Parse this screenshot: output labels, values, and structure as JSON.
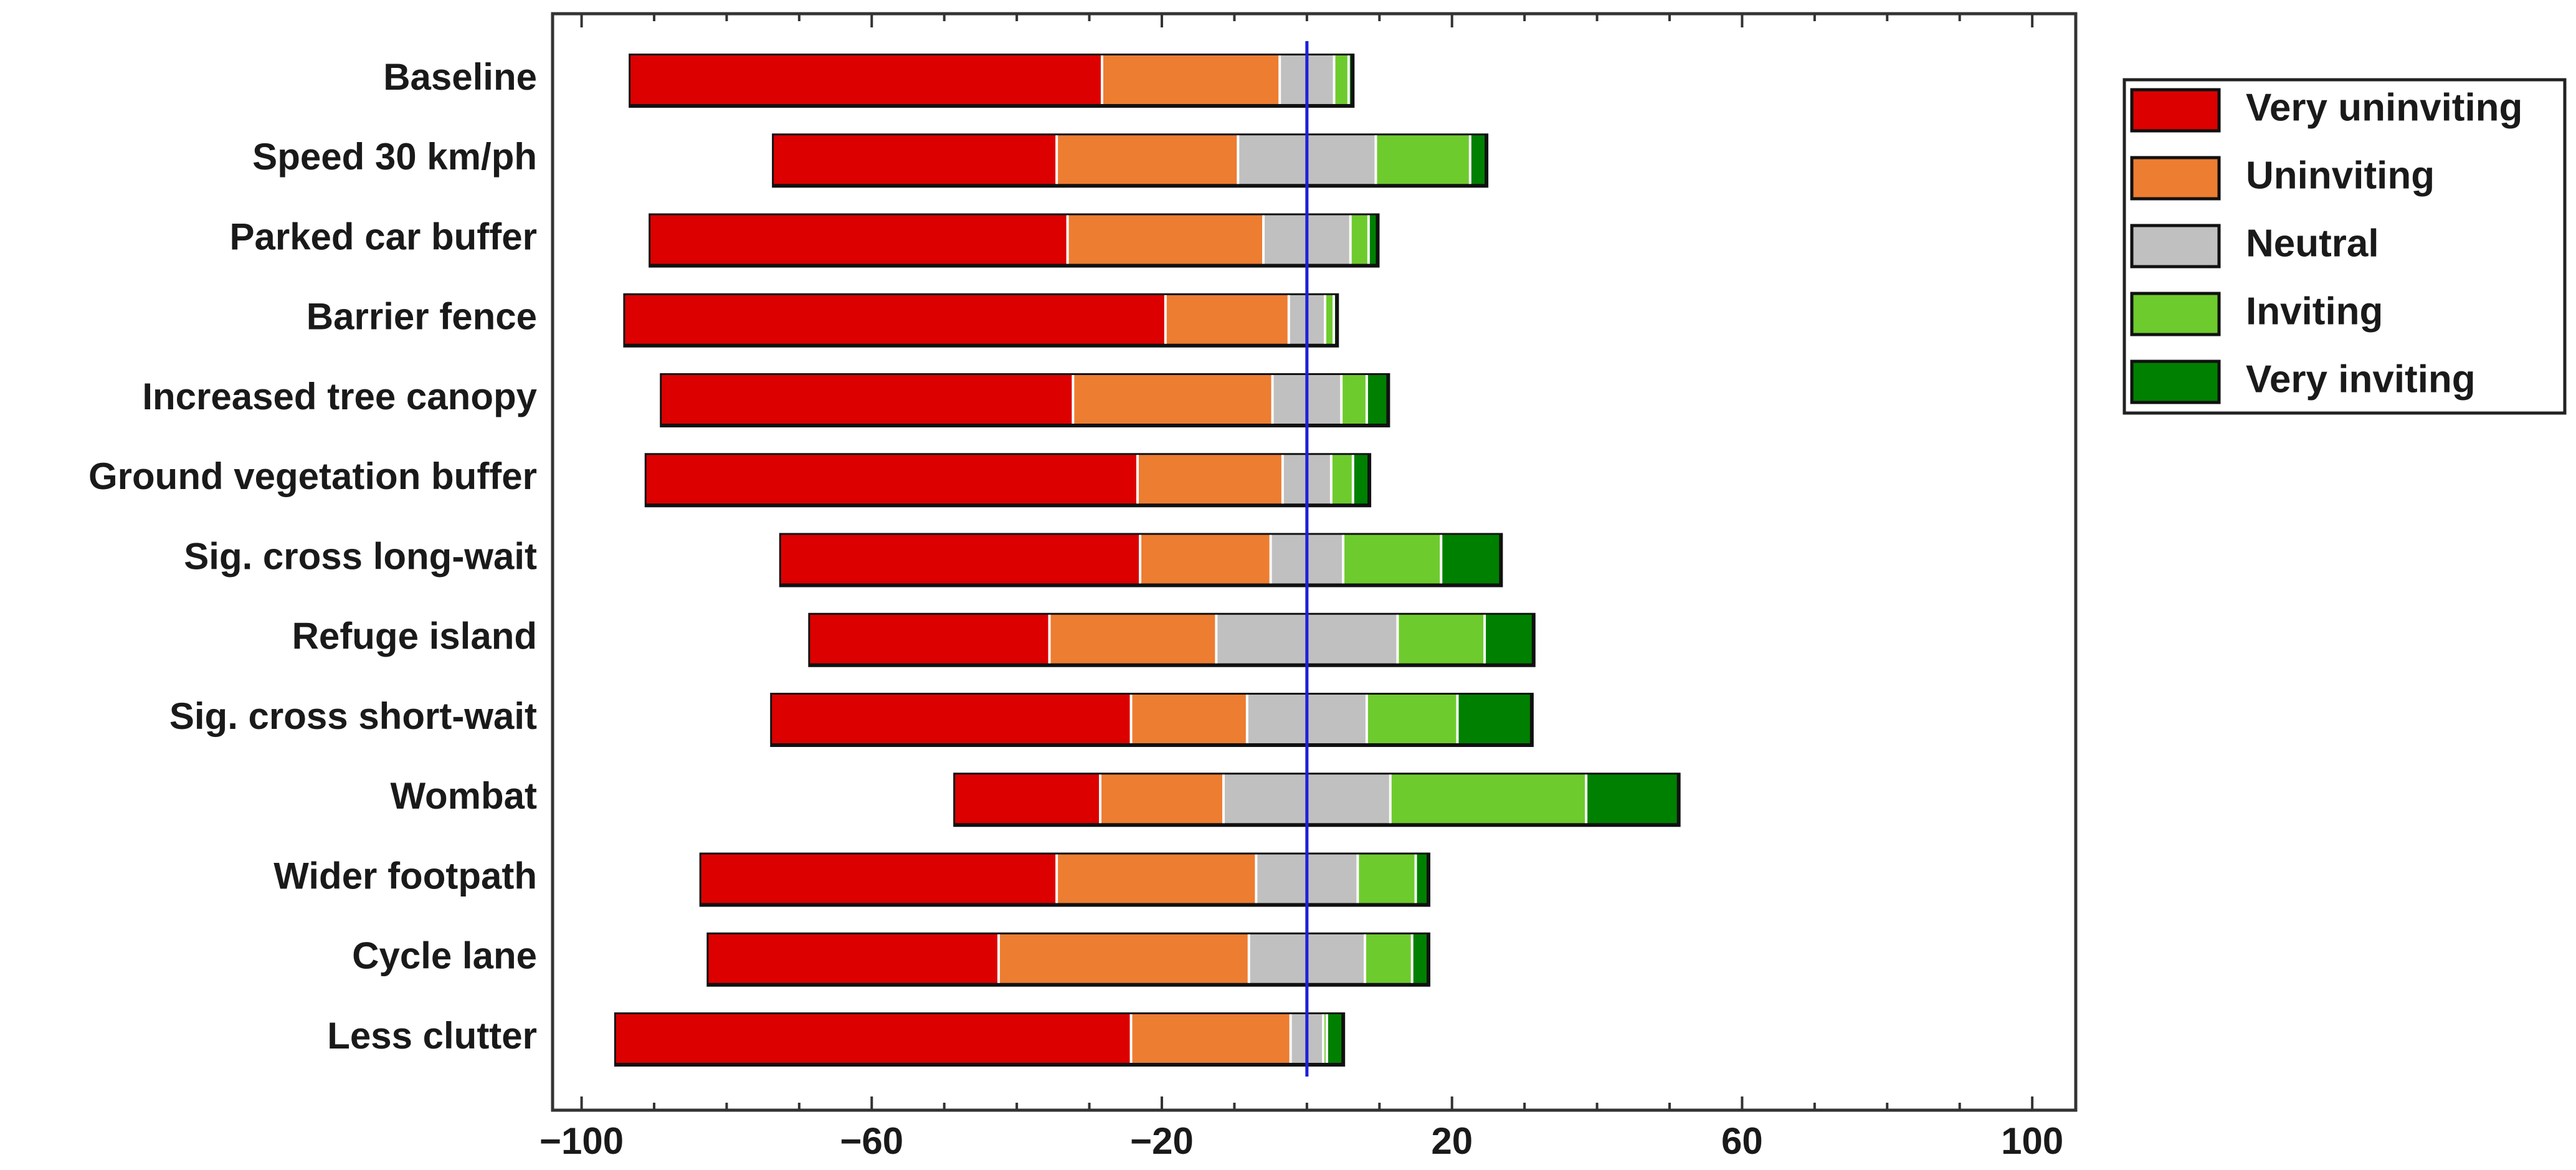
{
  "chart_data": {
    "type": "bar",
    "orientation": "horizontal",
    "stacked": "diverging",
    "title": "",
    "xlabel": "",
    "ylabel": "",
    "xlim": [
      -104,
      106
    ],
    "xticks": [
      -100,
      -60,
      -20,
      20,
      60,
      100
    ],
    "xtick_labels": [
      "−100",
      "−60",
      "−20",
      "20",
      "60",
      "100"
    ],
    "reference_line": {
      "x": 0,
      "color": "#1f1fd6"
    },
    "legend_position": "top-right",
    "categories": [
      "Baseline",
      "Speed 30 km/ph",
      "Parked car buffer",
      "Barrier fence",
      "Increased tree canopy",
      "Ground vegetation buffer",
      "Sig. cross long-wait",
      "Refuge island",
      "Sig. cross short-wait",
      "Wombat",
      "Wider footpath",
      "Cycle lane",
      "Less clutter"
    ],
    "series": [
      {
        "name": "Very uninviting",
        "color": "#dc0000",
        "values": [
          65.0,
          39.0,
          57.5,
          74.5,
          56.7,
          67.7,
          49.5,
          33.0,
          49.5,
          20.0,
          49.0,
          40.0,
          71.0
        ]
      },
      {
        "name": "Uninviting",
        "color": "#ed7d31",
        "values": [
          24.5,
          25.0,
          27.0,
          17.0,
          27.5,
          20.0,
          18.0,
          23.0,
          16.0,
          17.0,
          27.5,
          34.5,
          22.0
        ]
      },
      {
        "name": "Neutral",
        "color": "#c0c0c0",
        "values": [
          7.5,
          19.0,
          12.0,
          5.0,
          9.5,
          6.7,
          10.0,
          25.0,
          16.5,
          23.0,
          14.0,
          16.0,
          4.5
        ]
      },
      {
        "name": "Inviting",
        "color": "#6ecb2d",
        "values": [
          2.0,
          13.0,
          2.5,
          1.2,
          3.5,
          3.0,
          13.5,
          12.0,
          12.5,
          27.0,
          8.0,
          6.5,
          0.5
        ]
      },
      {
        "name": "Very inviting",
        "color": "#008000",
        "values": [
          0.3,
          2.0,
          1.0,
          0.2,
          2.7,
          2.0,
          8.0,
          6.5,
          10.0,
          12.5,
          1.5,
          2.0,
          2.0
        ]
      }
    ],
    "neutral_split": [
      0.5,
      0.5,
      0.5,
      0.5,
      0.5,
      0.5,
      0.5,
      0.5,
      0.5,
      0.5,
      0.5,
      0.5,
      0.5
    ]
  },
  "legend": {
    "items": [
      {
        "label": "Very uninviting",
        "color": "#dc0000"
      },
      {
        "label": "Uninviting",
        "color": "#ed7d31"
      },
      {
        "label": "Neutral",
        "color": "#c0c0c0"
      },
      {
        "label": "Inviting",
        "color": "#6ecb2d"
      },
      {
        "label": "Very inviting",
        "color": "#008000"
      }
    ]
  }
}
